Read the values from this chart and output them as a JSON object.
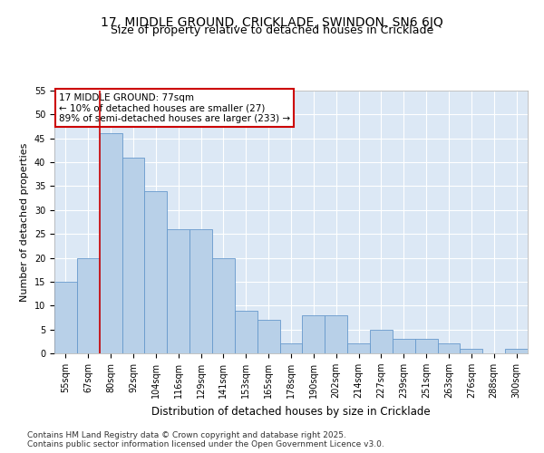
{
  "title": "17, MIDDLE GROUND, CRICKLADE, SWINDON, SN6 6JQ",
  "subtitle": "Size of property relative to detached houses in Cricklade",
  "xlabel": "Distribution of detached houses by size in Cricklade",
  "ylabel": "Number of detached properties",
  "footnote": "Contains HM Land Registry data © Crown copyright and database right 2025.\nContains public sector information licensed under the Open Government Licence v3.0.",
  "categories": [
    "55sqm",
    "67sqm",
    "80sqm",
    "92sqm",
    "104sqm",
    "116sqm",
    "129sqm",
    "141sqm",
    "153sqm",
    "165sqm",
    "178sqm",
    "190sqm",
    "202sqm",
    "214sqm",
    "227sqm",
    "239sqm",
    "251sqm",
    "263sqm",
    "276sqm",
    "288sqm",
    "300sqm"
  ],
  "values": [
    15,
    20,
    46,
    41,
    34,
    26,
    26,
    20,
    9,
    7,
    2,
    8,
    8,
    2,
    5,
    3,
    3,
    2,
    1,
    0,
    1
  ],
  "bar_color": "#b8d0e8",
  "bar_edge_color": "#6699cc",
  "vline_color": "#cc0000",
  "vline_x_index": 1.5,
  "annotation_text": "17 MIDDLE GROUND: 77sqm\n← 10% of detached houses are smaller (27)\n89% of semi-detached houses are larger (233) →",
  "annotation_box_color": "#ffffff",
  "annotation_box_edge_color": "#cc0000",
  "ylim": [
    0,
    55
  ],
  "yticks": [
    0,
    5,
    10,
    15,
    20,
    25,
    30,
    35,
    40,
    45,
    50,
    55
  ],
  "bg_color": "#dce8f5",
  "fig_bg_color": "#ffffff",
  "title_fontsize": 10,
  "xlabel_fontsize": 8.5,
  "ylabel_fontsize": 8,
  "tick_fontsize": 7,
  "footnote_fontsize": 6.5,
  "annotation_fontsize": 7.5
}
